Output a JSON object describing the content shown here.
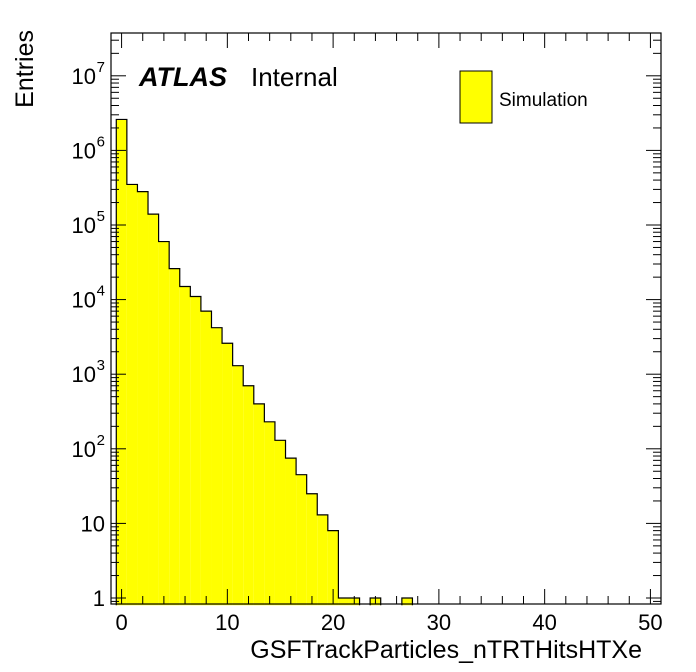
{
  "chart_data": {
    "type": "bar",
    "style": "histogram",
    "xlabel": "GSFTrackParticles_nTRTHitsHTXe",
    "ylabel": "Entries",
    "y_scale": "log",
    "xlim": [
      -1,
      51
    ],
    "ylim": [
      0.8,
      40000000
    ],
    "x_ticks": [
      "0",
      "10",
      "20",
      "30",
      "40",
      "50"
    ],
    "y_ticks": [
      {
        "base": "1",
        "exp": ""
      },
      {
        "base": "10",
        "exp": ""
      },
      {
        "base": "10",
        "exp": "2"
      },
      {
        "base": "10",
        "exp": "3"
      },
      {
        "base": "10",
        "exp": "4"
      },
      {
        "base": "10",
        "exp": "5"
      },
      {
        "base": "10",
        "exp": "6"
      },
      {
        "base": "10",
        "exp": "7"
      }
    ],
    "bin_width": 1,
    "bin_low_edges": [
      -0.5,
      0.5,
      1.5,
      2.5,
      3.5,
      4.5,
      5.5,
      6.5,
      7.5,
      8.5,
      9.5,
      10.5,
      11.5,
      12.5,
      13.5,
      14.5,
      15.5,
      16.5,
      17.5,
      18.5,
      19.5,
      20.5,
      21.5,
      23.5,
      26.5
    ],
    "values": [
      2600000,
      350000,
      280000,
      140000,
      60000,
      26000,
      15000,
      11000,
      7000,
      4200,
      2600,
      1300,
      700,
      400,
      230,
      130,
      75,
      45,
      25,
      13,
      8,
      1,
      1,
      1,
      1
    ],
    "series": [
      {
        "name": "Simulation",
        "color": "#ffff00"
      }
    ],
    "legend_position": "top-right",
    "grid": false,
    "annotation": {
      "atlas": "ATLAS",
      "label": "Internal"
    }
  }
}
